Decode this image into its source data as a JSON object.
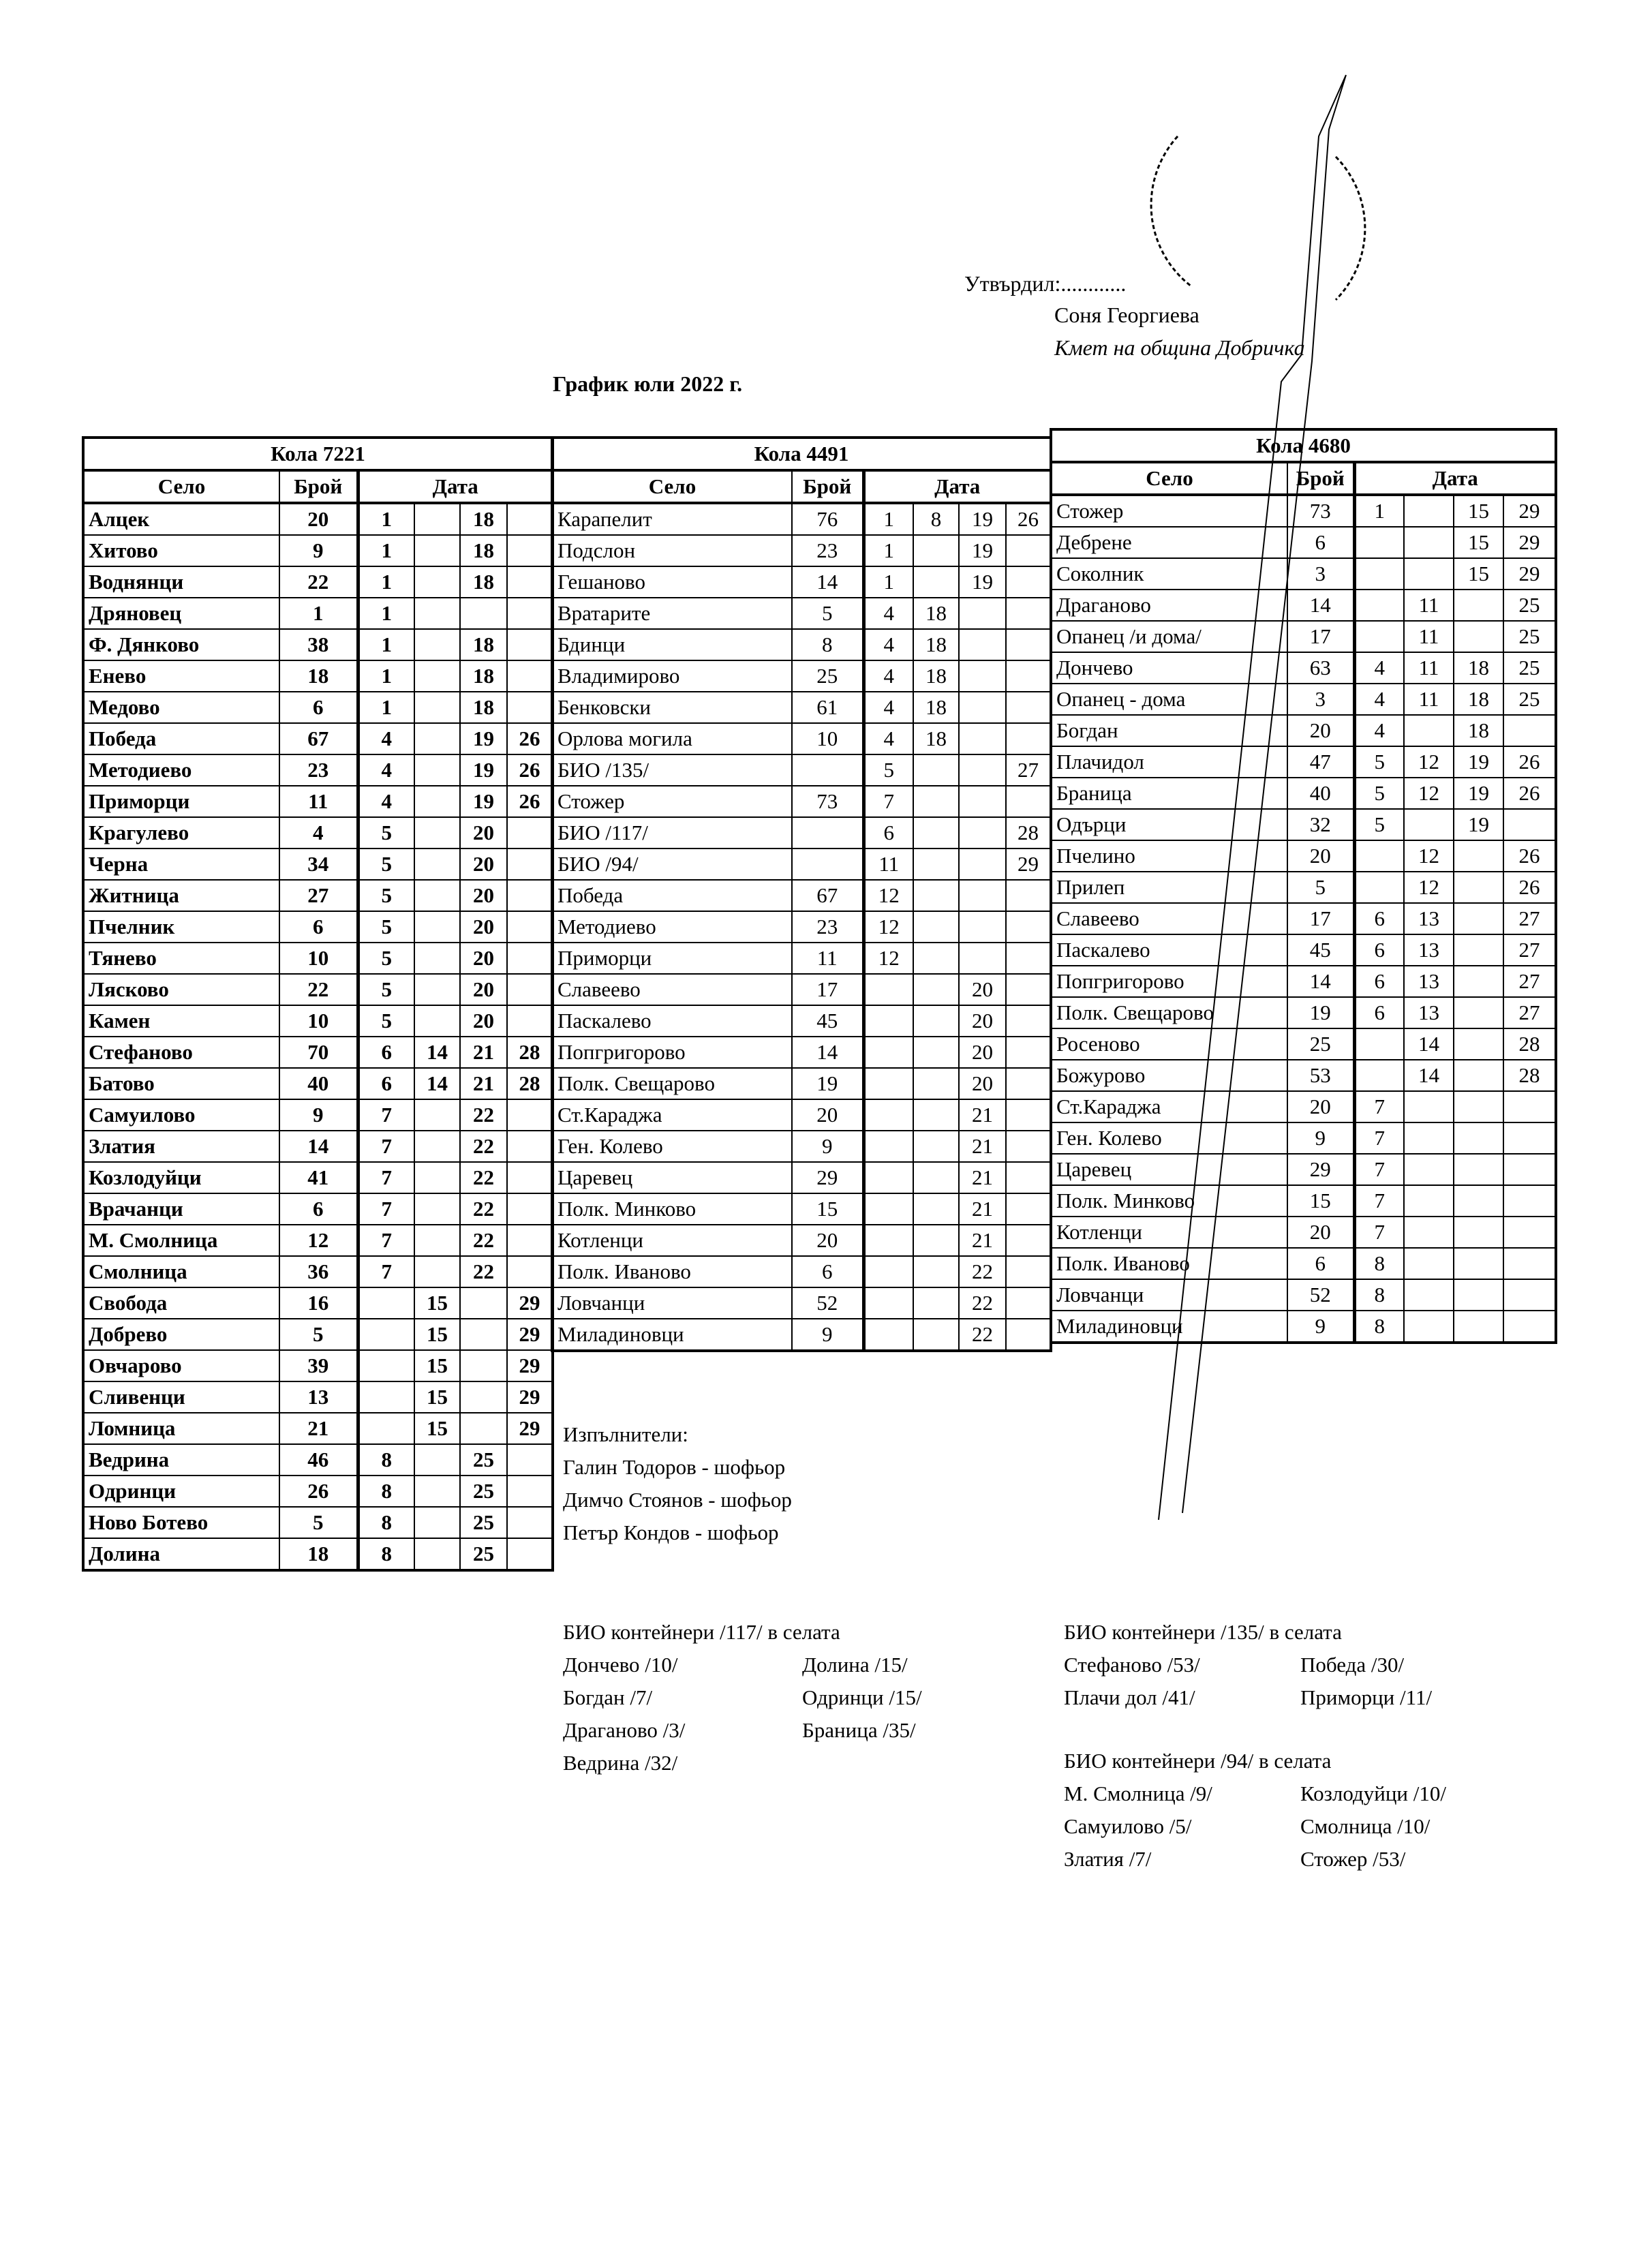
{
  "approval": {
    "approved_label": "Утвърдил:............",
    "name": "Соня Георгиева",
    "position": "Кмет  на община Добричка"
  },
  "document_title": "График юли 2022 г.",
  "tables": [
    {
      "title": "Кола 7221",
      "headers": {
        "village": "Село",
        "count": "Брой",
        "date": "Дата"
      },
      "rows": [
        [
          "Алцек",
          "20",
          "1",
          "",
          "18",
          ""
        ],
        [
          "Хитово",
          "9",
          "1",
          "",
          "18",
          ""
        ],
        [
          "Воднянци",
          "22",
          "1",
          "",
          "18",
          ""
        ],
        [
          "Дряновец",
          "1",
          "1",
          "",
          "",
          ""
        ],
        [
          "Ф. Дянково",
          "38",
          "1",
          "",
          "18",
          ""
        ],
        [
          "Енево",
          "18",
          "1",
          "",
          "18",
          ""
        ],
        [
          "Медово",
          "6",
          "1",
          "",
          "18",
          ""
        ],
        [
          "Победа",
          "67",
          "4",
          "",
          "19",
          "26"
        ],
        [
          "Методиево",
          "23",
          "4",
          "",
          "19",
          "26"
        ],
        [
          "Приморци",
          "11",
          "4",
          "",
          "19",
          "26"
        ],
        [
          "Крагулево",
          "4",
          "5",
          "",
          "20",
          ""
        ],
        [
          "Черна",
          "34",
          "5",
          "",
          "20",
          ""
        ],
        [
          "Житница",
          "27",
          "5",
          "",
          "20",
          ""
        ],
        [
          "Пчелник",
          "6",
          "5",
          "",
          "20",
          ""
        ],
        [
          "Тянево",
          "10",
          "5",
          "",
          "20",
          ""
        ],
        [
          "Лясково",
          "22",
          "5",
          "",
          "20",
          ""
        ],
        [
          "Камен",
          "10",
          "5",
          "",
          "20",
          ""
        ],
        [
          "Стефаново",
          "70",
          "6",
          "14",
          "21",
          "28"
        ],
        [
          "Батово",
          "40",
          "6",
          "14",
          "21",
          "28"
        ],
        [
          "Самуилово",
          "9",
          "7",
          "",
          "22",
          ""
        ],
        [
          "Златия",
          "14",
          "7",
          "",
          "22",
          ""
        ],
        [
          "Козлодуйци",
          "41",
          "7",
          "",
          "22",
          ""
        ],
        [
          "Врачанци",
          "6",
          "7",
          "",
          "22",
          ""
        ],
        [
          "М. Смолница",
          "12",
          "7",
          "",
          "22",
          ""
        ],
        [
          "Смолница",
          "36",
          "7",
          "",
          "22",
          ""
        ],
        [
          "Свобода",
          "16",
          "",
          "15",
          "",
          "29"
        ],
        [
          "Добрево",
          "5",
          "",
          "15",
          "",
          "29"
        ],
        [
          "Овчарово",
          "39",
          "",
          "15",
          "",
          "29"
        ],
        [
          "Сливенци",
          "13",
          "",
          "15",
          "",
          "29"
        ],
        [
          "Ломница",
          "21",
          "",
          "15",
          "",
          "29"
        ],
        [
          "Ведрина",
          "46",
          "8",
          "",
          "25",
          ""
        ],
        [
          "Одринци",
          "26",
          "8",
          "",
          "25",
          ""
        ],
        [
          "Ново Ботево",
          "5",
          "8",
          "",
          "25",
          ""
        ],
        [
          "Долина",
          "18",
          "8",
          "",
          "25",
          ""
        ]
      ]
    },
    {
      "title": "Кола 4491",
      "headers": {
        "village": "Село",
        "count": "Брой",
        "date": "Дата"
      },
      "rows": [
        [
          "Карапелит",
          "76",
          "1",
          "8",
          "19",
          "26"
        ],
        [
          "Подслон",
          "23",
          "1",
          "",
          "19",
          ""
        ],
        [
          "Гешаново",
          "14",
          "1",
          "",
          "19",
          ""
        ],
        [
          "Вратарите",
          "5",
          "4",
          "18",
          "",
          ""
        ],
        [
          "Бдинци",
          "8",
          "4",
          "18",
          "",
          ""
        ],
        [
          "Владимирово",
          "25",
          "4",
          "18",
          "",
          ""
        ],
        [
          "Бенковски",
          "61",
          "4",
          "18",
          "",
          ""
        ],
        [
          "Орлова могила",
          "10",
          "4",
          "18",
          "",
          ""
        ],
        [
          "БИО /135/",
          "",
          "5",
          "",
          "",
          "27"
        ],
        [
          "Стожер",
          "73",
          "7",
          "",
          "",
          ""
        ],
        [
          "БИО /117/",
          "",
          "6",
          "",
          "",
          "28"
        ],
        [
          "БИО /94/",
          "",
          "11",
          "",
          "",
          "29"
        ],
        [
          "Победа",
          "67",
          "12",
          "",
          "",
          ""
        ],
        [
          "Методиево",
          "23",
          "12",
          "",
          "",
          ""
        ],
        [
          "Приморци",
          "11",
          "12",
          "",
          "",
          ""
        ],
        [
          "Славеево",
          "17",
          "",
          "",
          "20",
          ""
        ],
        [
          "Паскалево",
          "45",
          "",
          "",
          "20",
          ""
        ],
        [
          "Попгригорово",
          "14",
          "",
          "",
          "20",
          ""
        ],
        [
          "Полк. Свещарово",
          "19",
          "",
          "",
          "20",
          ""
        ],
        [
          "Ст.Караджа",
          "20",
          "",
          "",
          "21",
          ""
        ],
        [
          "Ген. Колево",
          "9",
          "",
          "",
          "21",
          ""
        ],
        [
          "Царевец",
          "29",
          "",
          "",
          "21",
          ""
        ],
        [
          "Полк. Минково",
          "15",
          "",
          "",
          "21",
          ""
        ],
        [
          "Котленци",
          "20",
          "",
          "",
          "21",
          ""
        ],
        [
          "Полк. Иваново",
          "6",
          "",
          "",
          "22",
          ""
        ],
        [
          "Ловчанци",
          "52",
          "",
          "",
          "22",
          ""
        ],
        [
          "Миладиновци",
          "9",
          "",
          "",
          "22",
          ""
        ]
      ]
    },
    {
      "title": "Кола 4680",
      "headers": {
        "village": "Село",
        "count": "Брой",
        "date": "Дата"
      },
      "rows": [
        [
          "Стожер",
          "73",
          "1",
          "",
          "15",
          "29"
        ],
        [
          "Дебрене",
          "6",
          "",
          "",
          "15",
          "29"
        ],
        [
          "Соколник",
          "3",
          "",
          "",
          "15",
          "29"
        ],
        [
          "Драганово",
          "14",
          "",
          "11",
          "",
          "25"
        ],
        [
          "Опанец /и дома/",
          "17",
          "",
          "11",
          "",
          "25"
        ],
        [
          "Дончево",
          "63",
          "4",
          "11",
          "18",
          "25"
        ],
        [
          "Опанец - дома",
          "3",
          "4",
          "11",
          "18",
          "25"
        ],
        [
          "Богдан",
          "20",
          "4",
          "",
          "18",
          ""
        ],
        [
          "Плачидол",
          "47",
          "5",
          "12",
          "19",
          "26"
        ],
        [
          "Браница",
          "40",
          "5",
          "12",
          "19",
          "26"
        ],
        [
          "Одърци",
          "32",
          "5",
          "",
          "19",
          ""
        ],
        [
          "Пчелино",
          "20",
          "",
          "12",
          "",
          "26"
        ],
        [
          "Прилеп",
          "5",
          "",
          "12",
          "",
          "26"
        ],
        [
          "Славеево",
          "17",
          "6",
          "13",
          "",
          "27"
        ],
        [
          "Паскалево",
          "45",
          "6",
          "13",
          "",
          "27"
        ],
        [
          "Попгригорово",
          "14",
          "6",
          "13",
          "",
          "27"
        ],
        [
          "Полк. Свещарово",
          "19",
          "6",
          "13",
          "",
          "27"
        ],
        [
          "Росеново",
          "25",
          "",
          "14",
          "",
          "28"
        ],
        [
          "Божурово",
          "53",
          "",
          "14",
          "",
          "28"
        ],
        [
          "Ст.Караджа",
          "20",
          "7",
          "",
          "",
          ""
        ],
        [
          "Ген. Колево",
          "9",
          "7",
          "",
          "",
          ""
        ],
        [
          "Царевец",
          "29",
          "7",
          "",
          "",
          ""
        ],
        [
          "Полк. Минково",
          "15",
          "7",
          "",
          "",
          ""
        ],
        [
          "Котленци",
          "20",
          "7",
          "",
          "",
          ""
        ],
        [
          "Полк. Иваново",
          "6",
          "8",
          "",
          "",
          ""
        ],
        [
          "Ловчанци",
          "52",
          "8",
          "",
          "",
          ""
        ],
        [
          "Миладиновци",
          "9",
          "8",
          "",
          "",
          ""
        ]
      ]
    }
  ],
  "executors": {
    "label": "Изпълнители:",
    "people": [
      "Галин Тодоров - шофьор",
      "Димчо Стоянов - шофьор",
      "Петър Кондов - шофьор"
    ]
  },
  "bio_containers": [
    {
      "title": "БИО контейнери /117/ в селата",
      "col1": [
        "Дончево /10/",
        "Богдан /7/",
        "Драганово /3/",
        "Ведрина /32/"
      ],
      "col2": [
        "Долина /15/",
        "Одринци /15/",
        "Браница /35/"
      ]
    },
    {
      "title": "БИО контейнери /135/ в селата",
      "col1": [
        "Стефаново /53/",
        "Плачи дол /41/"
      ],
      "col2": [
        "Победа /30/",
        "Приморци /11/"
      ]
    },
    {
      "title": "БИО контейнери /94/ в селата",
      "col1": [
        "М. Смолница /9/",
        "Самуилово /5/",
        "Златия /7/"
      ],
      "col2": [
        "Козлодуйци /10/",
        "Смолница /10/",
        "Стожер /53/"
      ]
    }
  ]
}
